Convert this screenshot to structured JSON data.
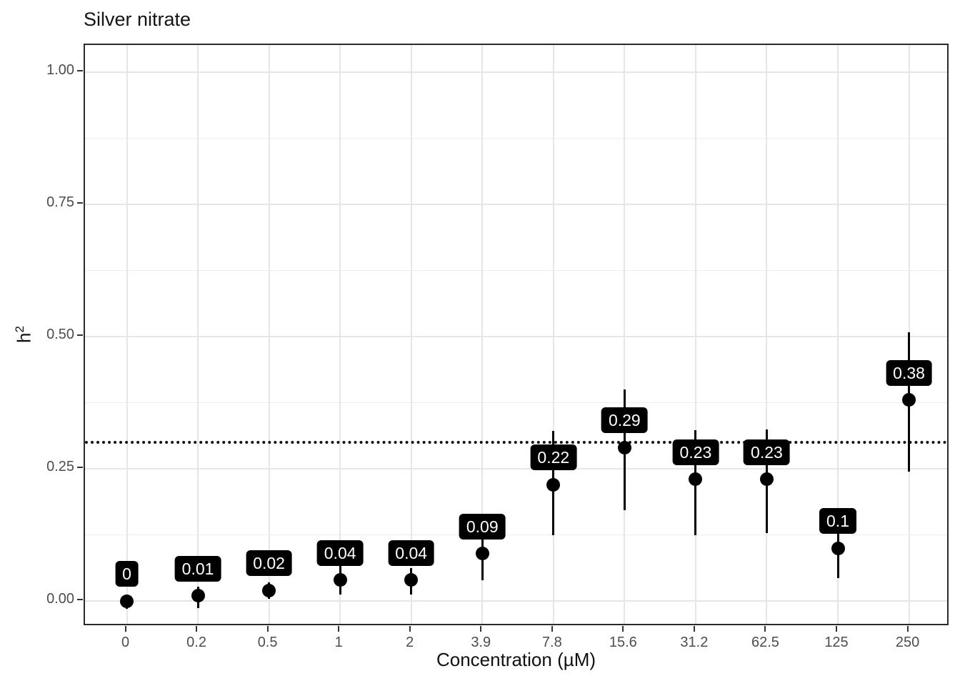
{
  "title": "Silver nitrate",
  "axes": {
    "y_title_base": "h",
    "y_title_sup": "2",
    "x_title": "Concentration (µM)"
  },
  "colors": {
    "background": "#ffffff",
    "point": "#000000",
    "error_bar": "#000000",
    "label_bg": "#000000",
    "label_text": "#ffffff",
    "grid_major": "#e6e6e6",
    "grid_minor": "#ededed",
    "panel_border": "#2b2b2b",
    "axis_text": "#4d4d4d",
    "title_text": "#141414",
    "reference_line": "#111111"
  },
  "chart_data": {
    "type": "scatter",
    "subtype": "pointrange",
    "title": "Silver nitrate",
    "xlabel": "Concentration (µM)",
    "ylabel": "h²",
    "categories": [
      "0",
      "0.2",
      "0.5",
      "1",
      "2",
      "3.9",
      "7.8",
      "15.6",
      "31.2",
      "62.5",
      "125",
      "250"
    ],
    "values": [
      0,
      0.01,
      0.02,
      0.04,
      0.04,
      0.09,
      0.22,
      0.29,
      0.23,
      0.23,
      0.1,
      0.38
    ],
    "point_labels": [
      "0",
      "0.01",
      "0.02",
      "0.04",
      "0.04",
      "0.09",
      "0.22",
      "0.29",
      "0.23",
      "0.23",
      "0.1",
      "0.38"
    ],
    "error_low": [
      -0.015,
      -0.013,
      0.004,
      0.013,
      0.013,
      0.04,
      0.125,
      0.172,
      0.125,
      0.128,
      0.043,
      0.245
    ],
    "error_high": [
      0.012,
      0.028,
      0.036,
      0.066,
      0.062,
      0.138,
      0.322,
      0.4,
      0.323,
      0.325,
      0.148,
      0.508
    ],
    "reference_line_y": 0.3,
    "ylim": [
      0,
      1
    ],
    "y_tick_values": [
      1.0,
      0.75,
      0.5,
      0.25,
      0.0
    ],
    "y_tick_labels": [
      "1.00",
      "0.75",
      "0.50",
      "0.25",
      "0.00"
    ],
    "y_minor_ticks": [
      0.875,
      0.625,
      0.375,
      0.125
    ],
    "grid": true,
    "legend": false
  }
}
